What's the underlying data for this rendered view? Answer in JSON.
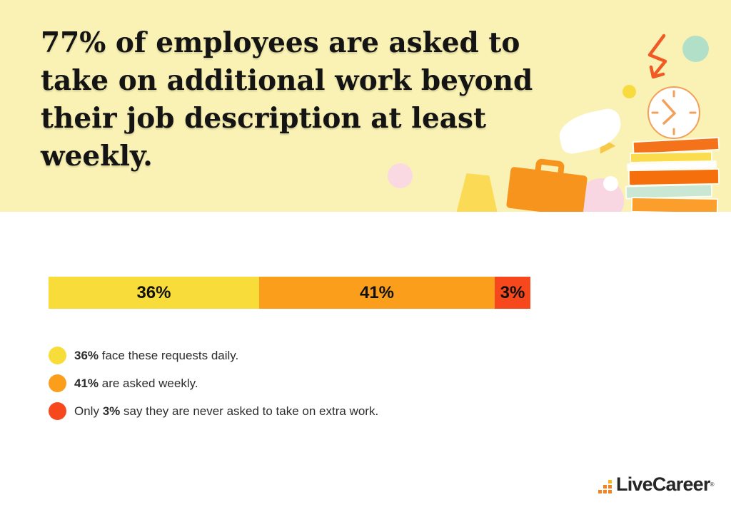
{
  "banner": {
    "headline_lines": [
      "77% of employees are asked to",
      "take on additional work beyond",
      "their job description at least",
      "weekly."
    ],
    "bg_color": "#F9F2B4"
  },
  "chart_data": {
    "type": "bar",
    "orientation": "horizontal-stacked",
    "title": "77% of employees are asked to take on additional work beyond their job description at least weekly.",
    "categories": [
      "daily",
      "weekly",
      "never"
    ],
    "segments": [
      {
        "label": "36%",
        "value": 36,
        "color": "#F8DD3A",
        "meaning": "face these requests daily"
      },
      {
        "label": "41%",
        "value": 41,
        "color": "#FB9E1B",
        "meaning": "are asked weekly"
      },
      {
        "label": "3%",
        "value": 3,
        "color": "#F6471D",
        "meaning": "never asked to take on extra work"
      }
    ],
    "display_widths_pct": [
      43.7,
      48.9,
      7.4
    ],
    "legend_position": "below",
    "grid": false
  },
  "legend": {
    "items": [
      {
        "pre": "",
        "bold": "36%",
        "post": " face these requests daily.",
        "color": "#F8DD3A"
      },
      {
        "pre": "",
        "bold": "41%",
        "post": " are asked weekly.",
        "color": "#FB9E1B"
      },
      {
        "pre": "Only ",
        "bold": "3%",
        "post": " say they are never asked to take on extra work.",
        "color": "#F6471D"
      }
    ]
  },
  "footer": {
    "brand": "LiveCareer",
    "trademark": "®"
  },
  "colors": {
    "banner_bg": "#F9F2B4",
    "accent_orange": "#F7941E",
    "accent_red": "#F6471D",
    "accent_yellow": "#F8DD3A"
  }
}
